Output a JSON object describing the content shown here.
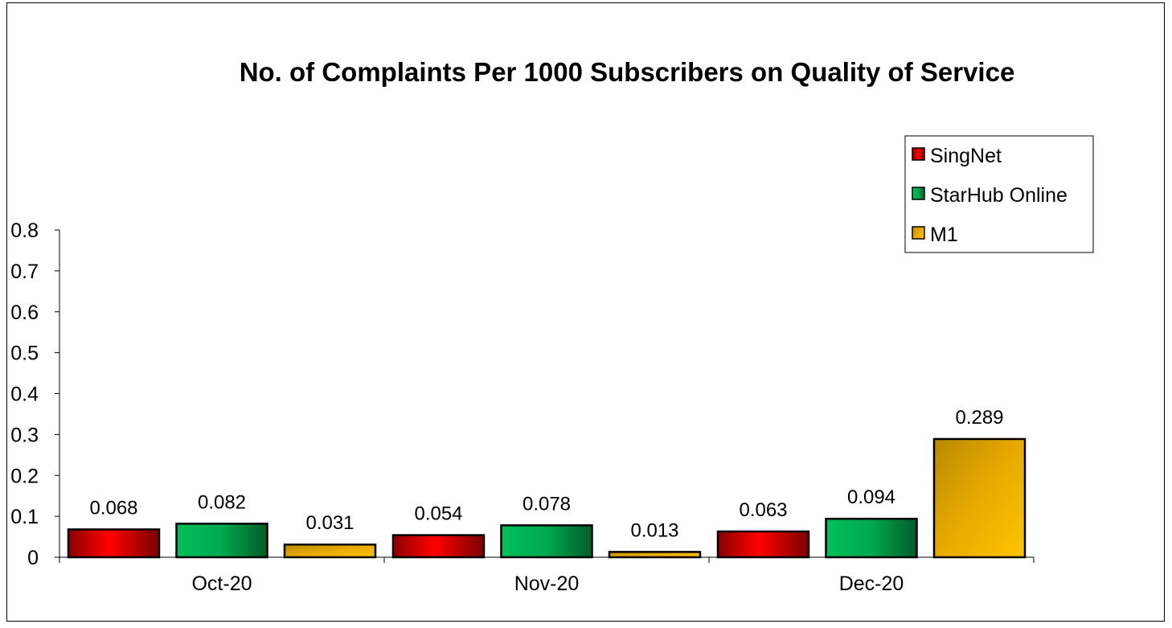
{
  "chart_data": {
    "type": "bar",
    "title": "No. of Complaints Per 1000 Subscribers on Quality of Service",
    "categories": [
      "Oct-20",
      "Nov-20",
      "Dec-20"
    ],
    "series": [
      {
        "name": "SingNet",
        "values": [
          0.068,
          0.054,
          0.063
        ],
        "labels": [
          "0.068",
          "0.054",
          "0.063"
        ],
        "color": "#e00000"
      },
      {
        "name": "StarHub Online",
        "values": [
          0.082,
          0.078,
          0.094
        ],
        "labels": [
          "0.082",
          "0.078",
          "0.094"
        ],
        "color": "#00a650"
      },
      {
        "name": "M1",
        "values": [
          0.031,
          0.013,
          0.289
        ],
        "labels": [
          "0.031",
          "0.013",
          "0.289"
        ],
        "color": "#e8b000"
      }
    ],
    "y_ticks": [
      "0",
      "0.1",
      "0.2",
      "0.3",
      "0.4",
      "0.5",
      "0.6",
      "0.7",
      "0.8"
    ],
    "ylim": [
      0,
      0.8
    ],
    "grid": false,
    "legend": "top-right"
  }
}
